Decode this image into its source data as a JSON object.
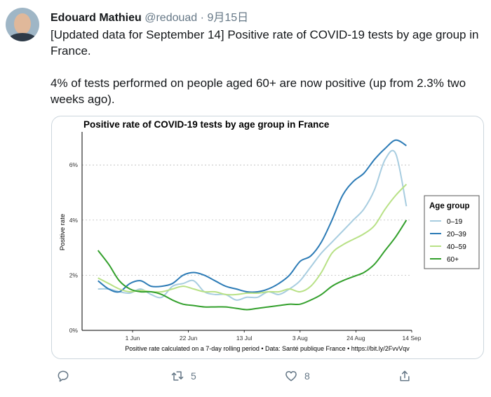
{
  "tweet": {
    "author_name": "Edouard Mathieu",
    "handle": "@redouad",
    "separator": "·",
    "date": "9月15日",
    "text_line1": "[Updated data for September 14] Positive rate of COVID-19 tests by age group in France.",
    "text_line2": "4% of tests performed on people aged 60+ are now positive (up from 2.3% two weeks ago)."
  },
  "actions": {
    "reply_count": "",
    "retweet_count": "5",
    "like_count": "8"
  },
  "chart_data": {
    "type": "line",
    "title": "Positive rate of COVID-19 tests by age group in France",
    "ylabel": "Positive rate",
    "xlabel": "",
    "caption": "Positive rate calculated on a 7-day rolling period • Data: Santé publique France • https://bit.ly/2FvvVqv",
    "legend_title": "Age group",
    "legend_position": "right",
    "y_ticks": [
      "0%",
      "2%",
      "4%",
      "6%"
    ],
    "x_ticks": [
      "1 Jun",
      "22 Jun",
      "13 Jul",
      "3 Aug",
      "24 Aug",
      "14 Sep"
    ],
    "x_tick_dates": [
      "2020-06-01",
      "2020-06-22",
      "2020-07-13",
      "2020-08-03",
      "2020-08-24",
      "2020-09-14"
    ],
    "ylim": [
      0,
      7.2
    ],
    "xlim": [
      "2020-05-13",
      "2020-09-14"
    ],
    "grid": "horizontal dotted",
    "x": [
      "2020-05-19",
      "2020-05-23",
      "2020-05-27",
      "2020-05-31",
      "2020-06-04",
      "2020-06-08",
      "2020-06-12",
      "2020-06-16",
      "2020-06-20",
      "2020-06-24",
      "2020-06-28",
      "2020-07-02",
      "2020-07-06",
      "2020-07-10",
      "2020-07-14",
      "2020-07-18",
      "2020-07-22",
      "2020-07-26",
      "2020-07-30",
      "2020-08-03",
      "2020-08-07",
      "2020-08-11",
      "2020-08-15",
      "2020-08-19",
      "2020-08-23",
      "2020-08-27",
      "2020-08-31",
      "2020-09-04",
      "2020-09-08",
      "2020-09-12"
    ],
    "series": [
      {
        "name": "0–19",
        "color": "#a8cde0",
        "values": [
          1.5,
          1.5,
          1.4,
          1.35,
          1.5,
          1.3,
          1.2,
          1.6,
          1.7,
          1.8,
          1.4,
          1.3,
          1.3,
          1.1,
          1.2,
          1.2,
          1.4,
          1.3,
          1.5,
          1.8,
          2.3,
          2.8,
          3.2,
          3.6,
          4.0,
          4.4,
          5.1,
          6.2,
          6.4,
          4.5
        ]
      },
      {
        "name": "20–39",
        "color": "#2c7bb6",
        "values": [
          1.8,
          1.5,
          1.4,
          1.7,
          1.8,
          1.6,
          1.6,
          1.7,
          2.0,
          2.1,
          2.0,
          1.8,
          1.6,
          1.5,
          1.4,
          1.4,
          1.5,
          1.7,
          2.0,
          2.5,
          2.7,
          3.2,
          4.0,
          4.9,
          5.4,
          5.7,
          6.2,
          6.6,
          6.9,
          6.7
        ]
      },
      {
        "name": "40–59",
        "color": "#b8e186",
        "values": [
          1.9,
          1.7,
          1.5,
          1.4,
          1.45,
          1.4,
          1.4,
          1.5,
          1.6,
          1.5,
          1.4,
          1.4,
          1.3,
          1.3,
          1.35,
          1.35,
          1.4,
          1.4,
          1.5,
          1.4,
          1.6,
          2.1,
          2.8,
          3.1,
          3.3,
          3.5,
          3.8,
          4.4,
          4.9,
          5.3
        ]
      },
      {
        "name": "60+",
        "color": "#33a02c",
        "values": [
          2.9,
          2.4,
          1.8,
          1.5,
          1.4,
          1.4,
          1.3,
          1.1,
          0.95,
          0.9,
          0.85,
          0.85,
          0.85,
          0.8,
          0.75,
          0.8,
          0.85,
          0.9,
          0.95,
          0.95,
          1.1,
          1.3,
          1.6,
          1.8,
          1.95,
          2.1,
          2.4,
          2.9,
          3.4,
          4.0
        ]
      }
    ]
  }
}
